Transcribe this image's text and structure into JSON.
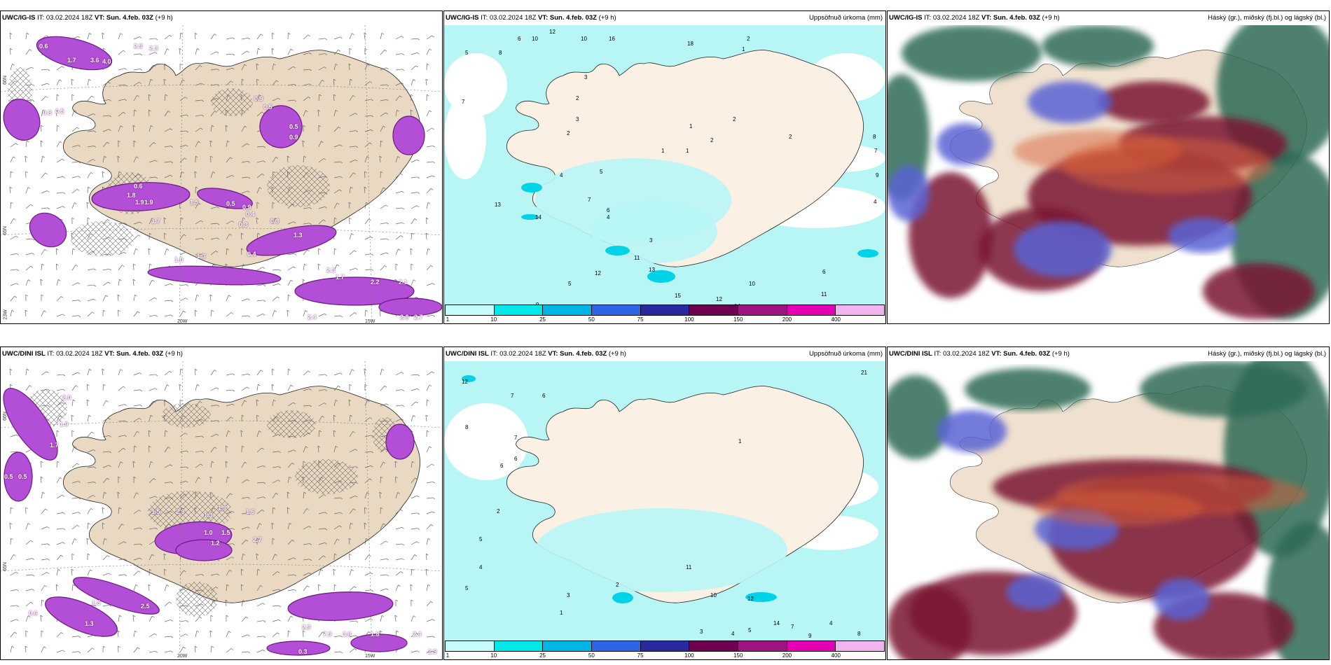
{
  "panels": [
    {
      "model": "UWC/IG-IS",
      "it_label": "IT:",
      "it_value": "03.02.2024 18Z",
      "vt_label": "VT:",
      "vt_value": "Sun. 4.feb. 03Z",
      "lead": "(+9 h)",
      "right_title": "",
      "type": "wind-precip"
    },
    {
      "model": "UWC/IG-IS",
      "it_label": "IT:",
      "it_value": "03.02.2024 18Z",
      "vt_label": "VT:",
      "vt_value": "Sun. 4.feb. 03Z",
      "lead": "(+9 h)",
      "right_title": "Uppsöfnuð úrkoma (mm)",
      "type": "accum-precip"
    },
    {
      "model": "UWC/IG-IS",
      "it_label": "IT:",
      "it_value": "03.02.2024 18Z",
      "vt_label": "VT:",
      "vt_value": "Sun. 4.feb. 03Z",
      "lead": "(+9 h)",
      "right_title": "Háský (gr.), miðský (fj.bl.) og lágský (bl.)",
      "type": "clouds"
    },
    {
      "model": "UWC/DINI ISL",
      "it_label": "IT:",
      "it_value": "03.02.2024 18Z",
      "vt_label": "VT:",
      "vt_value": "Sun. 4.feb. 03Z",
      "lead": "(+9 h)",
      "right_title": "",
      "type": "wind-precip"
    },
    {
      "model": "UWC/DINI ISL",
      "it_label": "IT:",
      "it_value": "03.02.2024 18Z",
      "vt_label": "VT:",
      "vt_value": "Sun. 4.feb. 03Z",
      "lead": "(+9 h)",
      "right_title": "Uppsöfnuð úrkoma (mm)",
      "type": "accum-precip"
    },
    {
      "model": "UWC/DINI ISL",
      "it_label": "IT:",
      "it_value": "03.02.2024 18Z",
      "vt_label": "VT:",
      "vt_value": "Sun. 4.feb. 03Z",
      "lead": "(+9 h)",
      "right_title": "Háský (gr.), miðský (fj.bl.) og lágský (bl.)",
      "type": "clouds"
    }
  ],
  "colorbar": {
    "ticks": [
      "1",
      "10",
      "25",
      "50",
      "75",
      "100",
      "150",
      "200",
      "400"
    ],
    "colors": [
      "#c6fbfb",
      "#00e8e8",
      "#00b4e6",
      "#2f64e6",
      "#2828a0",
      "#6e0050",
      "#a01482",
      "#e600b4",
      "#f0b4f0"
    ]
  },
  "colors": {
    "land": "#e9d9c3",
    "land_light": "#fbf0e4",
    "precip_magenta": "#b24fd6",
    "accum_cyan": "#b8f6f6",
    "cloud_high": "#2f6b55",
    "cloud_mid": "#7a1232",
    "cloud_low": "#5a63d4"
  },
  "graticule": {
    "top_left": [
      "66N",
      "65N",
      "23W",
      "20W",
      "15W"
    ],
    "bottom_left": [
      "66N",
      "65N",
      "20W",
      "15W"
    ]
  },
  "map_values": {
    "p1": [
      "0.6",
      "1.7",
      "3.6",
      "4.0",
      "2.9",
      "2.3",
      "0.9",
      "0.5",
      "0.5",
      "0.9",
      "0.6",
      "1.8",
      "1.9",
      "1.9",
      "1.5",
      "0.5",
      "0.9",
      "0.4",
      "0.3",
      "1.7",
      "2.3",
      "1.7",
      "2.2",
      "2.1",
      "2.4",
      "2.8",
      "2.7",
      "1.0",
      "1.3",
      "0.4",
      "1.3",
      "0.8",
      "0.5",
      "0.3"
    ],
    "p2": [
      "5",
      "8",
      "6",
      "10",
      "12",
      "10",
      "16",
      "18",
      "1",
      "2",
      "7",
      "3",
      "2",
      "3",
      "2",
      "1",
      "2",
      "2",
      "1",
      "1",
      "2",
      "8",
      "7",
      "9",
      "4",
      "13",
      "14",
      "4",
      "5",
      "7",
      "6",
      "4",
      "3",
      "11",
      "12",
      "13",
      "15",
      "14",
      "12",
      "10",
      "11",
      "6",
      "5",
      "9"
    ],
    "p4": [
      "2.0",
      "1.9",
      "1.7",
      "0.5",
      "0.5",
      "1.5",
      "2.9",
      "1.3",
      "1.8",
      "1.6",
      "1.0",
      "1.5",
      "1.2",
      "2.7",
      "2.5",
      "1.5",
      "1.3",
      "2.9",
      "7.9",
      "3.8",
      "1.8",
      "2.4",
      "2.9",
      "0.6",
      "0.3"
    ],
    "p5": [
      "12",
      "8",
      "7",
      "6",
      "7",
      "6",
      "6",
      "2",
      "5",
      "4",
      "5",
      "3",
      "2",
      "1",
      "3",
      "4",
      "5",
      "7",
      "10",
      "11",
      "12",
      "14",
      "9",
      "4",
      "2",
      "8",
      "7",
      "21",
      "1"
    ]
  }
}
